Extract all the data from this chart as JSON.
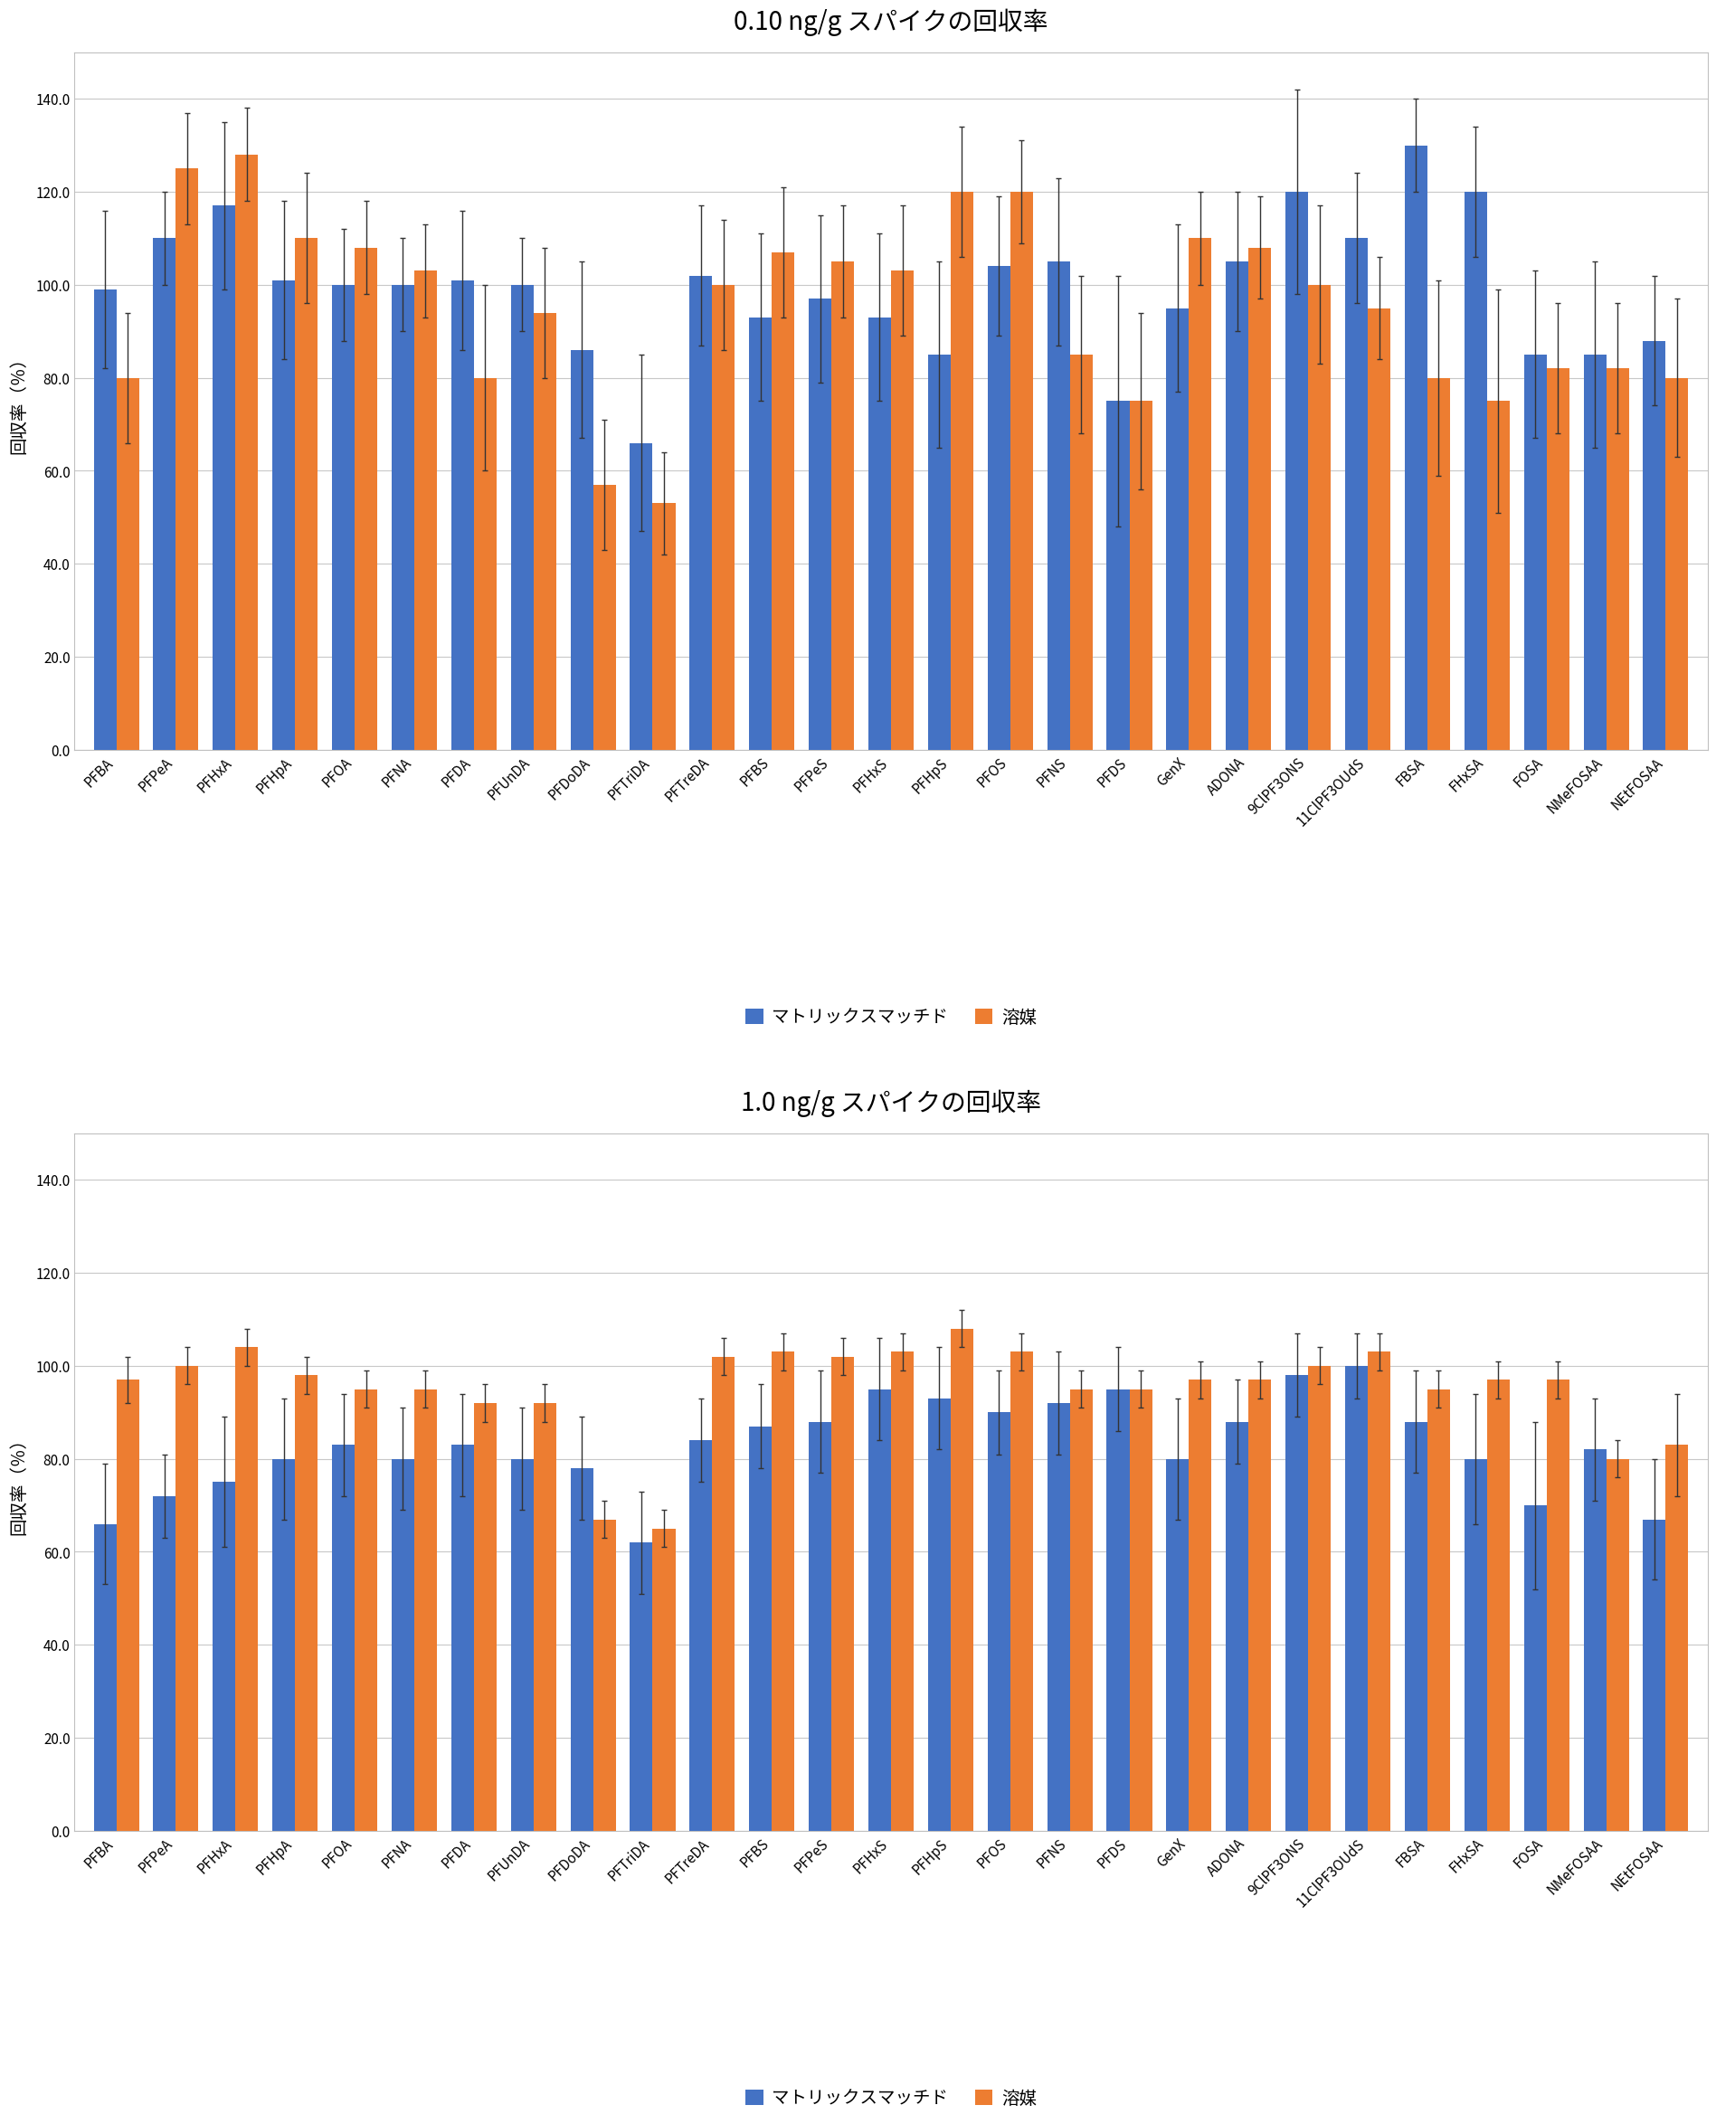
{
  "categories": [
    "PFBA",
    "PFPeA",
    "PFHxA",
    "PFHpA",
    "PFOA",
    "PFNA",
    "PFDA",
    "PFUnDA",
    "PFDoDA",
    "PFTriDA",
    "PFTreDA",
    "PFBS",
    "PFPeS",
    "PFHxS",
    "PFHpS",
    "PFOS",
    "PFNS",
    "PFDS",
    "GenX",
    "ADONA",
    "9ClPF3ONS",
    "11ClPF3OUdS",
    "FBSA",
    "FHxSA",
    "FOSA",
    "NMeFOSAA",
    "NEtFOSAA"
  ],
  "top_blue": [
    99,
    110,
    117,
    101,
    100,
    100,
    101,
    100,
    86,
    66,
    102,
    93,
    97,
    93,
    85,
    104,
    105,
    75,
    95,
    105,
    120,
    110,
    130,
    120,
    85,
    85,
    88
  ],
  "top_orange": [
    80,
    125,
    128,
    110,
    108,
    103,
    80,
    94,
    57,
    53,
    100,
    107,
    105,
    103,
    120,
    120,
    85,
    75,
    110,
    108,
    100,
    95,
    80,
    75,
    82,
    82,
    80
  ],
  "top_blue_err": [
    17,
    10,
    18,
    17,
    12,
    10,
    15,
    10,
    19,
    19,
    15,
    18,
    18,
    18,
    20,
    15,
    18,
    27,
    18,
    15,
    22,
    14,
    10,
    14,
    18,
    20,
    14
  ],
  "top_orange_err": [
    14,
    12,
    10,
    14,
    10,
    10,
    20,
    14,
    14,
    11,
    14,
    14,
    12,
    14,
    14,
    11,
    17,
    19,
    10,
    11,
    17,
    11,
    21,
    24,
    14,
    14,
    17
  ],
  "bot_blue": [
    66,
    72,
    75,
    80,
    83,
    80,
    83,
    80,
    78,
    62,
    84,
    87,
    88,
    95,
    93,
    90,
    92,
    95,
    80,
    88,
    98,
    100,
    88,
    80,
    70,
    82,
    67
  ],
  "bot_orange": [
    97,
    100,
    104,
    98,
    95,
    95,
    92,
    92,
    67,
    65,
    102,
    103,
    102,
    103,
    108,
    103,
    95,
    95,
    97,
    97,
    100,
    103,
    95,
    97,
    97,
    80,
    83
  ],
  "bot_blue_err": [
    13,
    9,
    14,
    13,
    11,
    11,
    11,
    11,
    11,
    11,
    9,
    9,
    11,
    11,
    11,
    9,
    11,
    9,
    13,
    9,
    9,
    7,
    11,
    14,
    18,
    11,
    13
  ],
  "bot_orange_err": [
    5,
    4,
    4,
    4,
    4,
    4,
    4,
    4,
    4,
    4,
    4,
    4,
    4,
    4,
    4,
    4,
    4,
    4,
    4,
    4,
    4,
    4,
    4,
    4,
    4,
    4,
    11
  ],
  "title_top": "0.10 ng/g スパイクの回収率",
  "title_bot": "1.0 ng/g スパイクの回収率",
  "ylabel": "回収率（％）",
  "legend_blue": "マトリックスマッチド",
  "legend_orange": "溶媒",
  "blue_color": "#4472C4",
  "orange_color": "#ED7D31",
  "bar_width": 0.38,
  "ylim": [
    0,
    150
  ],
  "yticks": [
    0.0,
    20.0,
    40.0,
    60.0,
    80.0,
    100.0,
    120.0,
    140.0
  ],
  "grid_color": "#C8C8C8",
  "background_color": "#FFFFFF",
  "title_fontsize": 20,
  "label_fontsize": 14,
  "tick_fontsize": 11,
  "legend_fontsize": 14
}
